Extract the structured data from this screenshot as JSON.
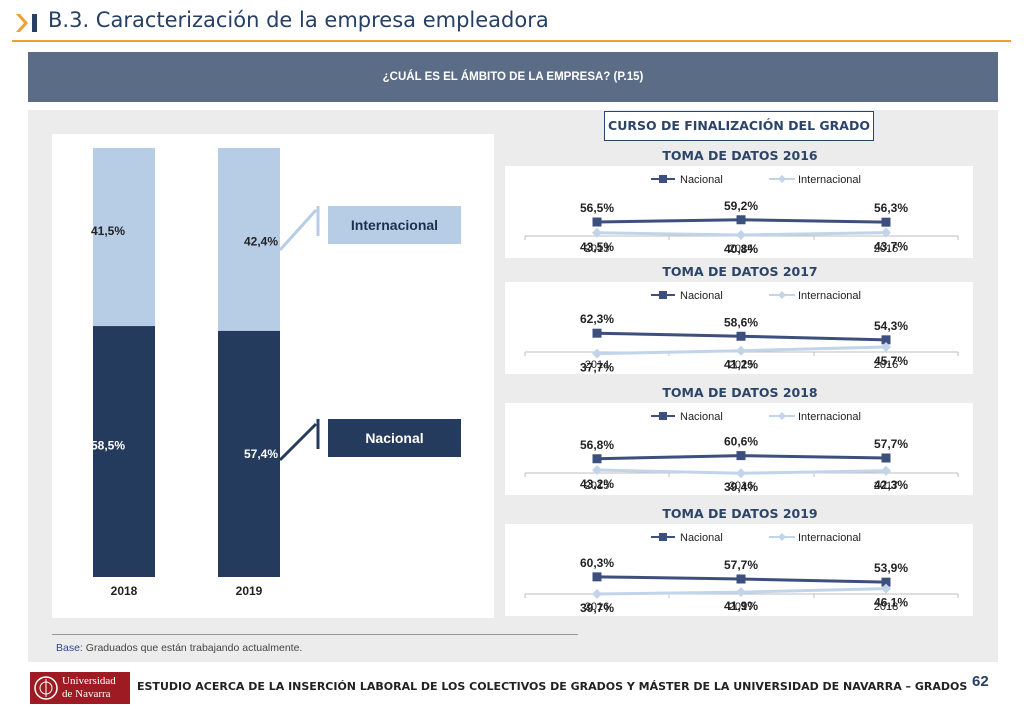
{
  "header": {
    "title": "B.3. Caracterización de la empresa empleadora"
  },
  "banner": {
    "question": "¿CUÁL ES EL ÁMBITO DE LA EMPRESA? (P.15)"
  },
  "legend": {
    "internacional": "Internacional",
    "nacional": "Nacional"
  },
  "curso": "CURSO DE FINALIZACIÓN DEL GRADO",
  "footer": {
    "base_label": "Base:",
    "base_text": "Graduados que están trabajando actualmente.",
    "study": "ESTUDIO ACERCA DE LA INSERCIÓN LABORAL DE LOS COLECTIVOS DE GRADOS Y MÁSTER DE LA UNIVERSIDAD DE NAVARRA – GRADOS",
    "page": "62",
    "logo_line1": "Universidad",
    "logo_line2": "de Navarra"
  },
  "colors": {
    "nacional": "#243b5e",
    "internacional": "#b7cde6",
    "line_nacional": "#3d4f7c",
    "line_internacional": "#c2d4ea",
    "accent": "#f0a030"
  },
  "chart_data": [
    {
      "type": "bar",
      "stacked": true,
      "categories": [
        "2018",
        "2019"
      ],
      "series": [
        {
          "name": "Nacional",
          "values": [
            58.5,
            57.4
          ],
          "labels": [
            "58,5%",
            "57,4%"
          ]
        },
        {
          "name": "Internacional",
          "values": [
            41.5,
            42.4
          ],
          "labels": [
            "41,5%",
            "42,4%"
          ]
        }
      ],
      "ylim": [
        0,
        100
      ]
    },
    {
      "type": "line",
      "title": "TOMA DE DATOS 2016",
      "x": [
        "2013",
        "2014",
        "2015"
      ],
      "series": [
        {
          "name": "Nacional",
          "values": [
            56.5,
            59.2,
            56.3
          ],
          "labels": [
            "56,5%",
            "59,2%",
            "56,3%"
          ]
        },
        {
          "name": "Internacional",
          "values": [
            43.5,
            40.8,
            43.7
          ],
          "labels": [
            "43,5%",
            "40,8%",
            "43,7%"
          ]
        }
      ]
    },
    {
      "type": "line",
      "title": "TOMA DE DATOS 2017",
      "x": [
        "2014",
        "2015",
        "2016"
      ],
      "series": [
        {
          "name": "Nacional",
          "values": [
            62.3,
            58.6,
            54.3
          ],
          "labels": [
            "62,3%",
            "58,6%",
            "54,3%"
          ]
        },
        {
          "name": "Internacional",
          "values": [
            37.7,
            41.2,
            45.7
          ],
          "labels": [
            "37,7%",
            "41,2%",
            "45,7%"
          ]
        }
      ]
    },
    {
      "type": "line",
      "title": "TOMA DE DATOS 2018",
      "x": [
        "2015",
        "2016",
        "2017"
      ],
      "series": [
        {
          "name": "Nacional",
          "values": [
            56.8,
            60.6,
            57.7
          ],
          "labels": [
            "56,8%",
            "60,6%",
            "57,7%"
          ]
        },
        {
          "name": "Internacional",
          "values": [
            43.2,
            39.4,
            42.3
          ],
          "labels": [
            "43,2%",
            "39,4%",
            "42,3%"
          ]
        }
      ]
    },
    {
      "type": "line",
      "title": "TOMA DE DATOS 2019",
      "x": [
        "2016",
        "2017",
        "2018"
      ],
      "series": [
        {
          "name": "Nacional",
          "values": [
            60.3,
            57.7,
            53.9
          ],
          "labels": [
            "60,3%",
            "57,7%",
            "53,9%"
          ]
        },
        {
          "name": "Internacional",
          "values": [
            39.7,
            41.9,
            46.1
          ],
          "labels": [
            "39,7%",
            "41,9%",
            "46,1%"
          ]
        }
      ]
    }
  ]
}
